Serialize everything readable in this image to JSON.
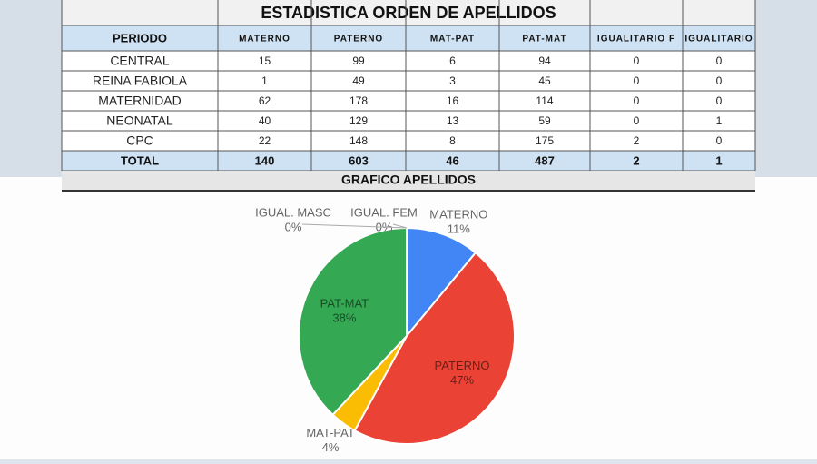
{
  "table": {
    "title": "ESTADISTICA ORDEN DE APELLIDOS",
    "header": [
      "PERIODO",
      "MATERNO",
      "PATERNO",
      "MAT-PAT",
      "PAT-MAT",
      "IGUALITARIO F",
      "IGUALITARIO"
    ],
    "rows": [
      [
        "CENTRAL",
        15,
        99,
        6,
        94,
        0,
        0
      ],
      [
        "REINA FABIOLA",
        1,
        49,
        3,
        45,
        0,
        0
      ],
      [
        "MATERNIDAD",
        62,
        178,
        16,
        114,
        0,
        0
      ],
      [
        "NEONATAL",
        40,
        129,
        13,
        59,
        0,
        1
      ],
      [
        "CPC",
        22,
        148,
        8,
        175,
        2,
        0
      ]
    ],
    "total": [
      "TOTAL",
      140,
      603,
      46,
      487,
      2,
      1
    ]
  },
  "chart_data": {
    "type": "pie",
    "title": "GRAFICO APELLIDOS",
    "categories": [
      "MATERNO",
      "PATERNO",
      "MAT-PAT",
      "PAT-MAT",
      "IGUAL. FEM",
      "IGUAL. MASC"
    ],
    "values": [
      11,
      47,
      4,
      38,
      0,
      0
    ],
    "value_labels": [
      "11%",
      "47%",
      "4%",
      "38%",
      "0%",
      "0%"
    ],
    "colors": [
      "#4285f4",
      "#ea4335",
      "#fbbc04",
      "#34a853",
      "#ff6d01",
      "#46bdc6"
    ]
  }
}
